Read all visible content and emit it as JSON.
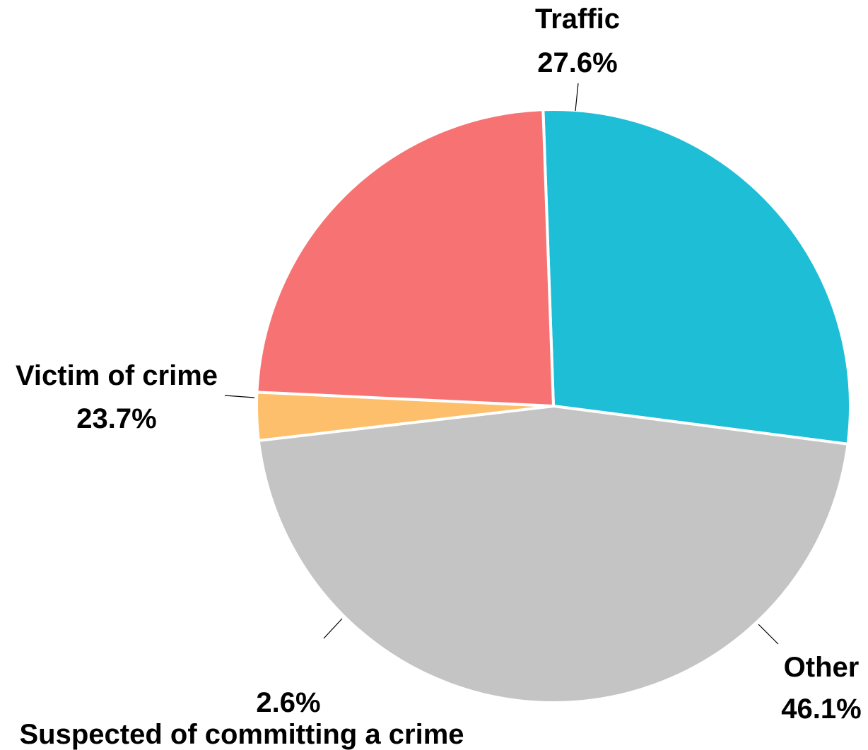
{
  "chart_data": {
    "type": "pie",
    "title": "",
    "slices": [
      {
        "label": "Traffic",
        "value": 27.6,
        "value_label": "27.6%",
        "color": "#1ebfd6"
      },
      {
        "label": "Other",
        "value": 46.1,
        "value_label": "46.1%",
        "color": "#c4c4c4"
      },
      {
        "label": "Suspected of committing a crime",
        "value": 2.6,
        "value_label": "2.6%",
        "color": "#fdbf6b"
      },
      {
        "label": "Victim of crime",
        "value": 23.7,
        "value_label": "23.7%",
        "color": "#f77373"
      }
    ],
    "start_angle_deg_clockwise_from_top": -2,
    "legend": "none",
    "slice_border_color": "#ffffff"
  }
}
